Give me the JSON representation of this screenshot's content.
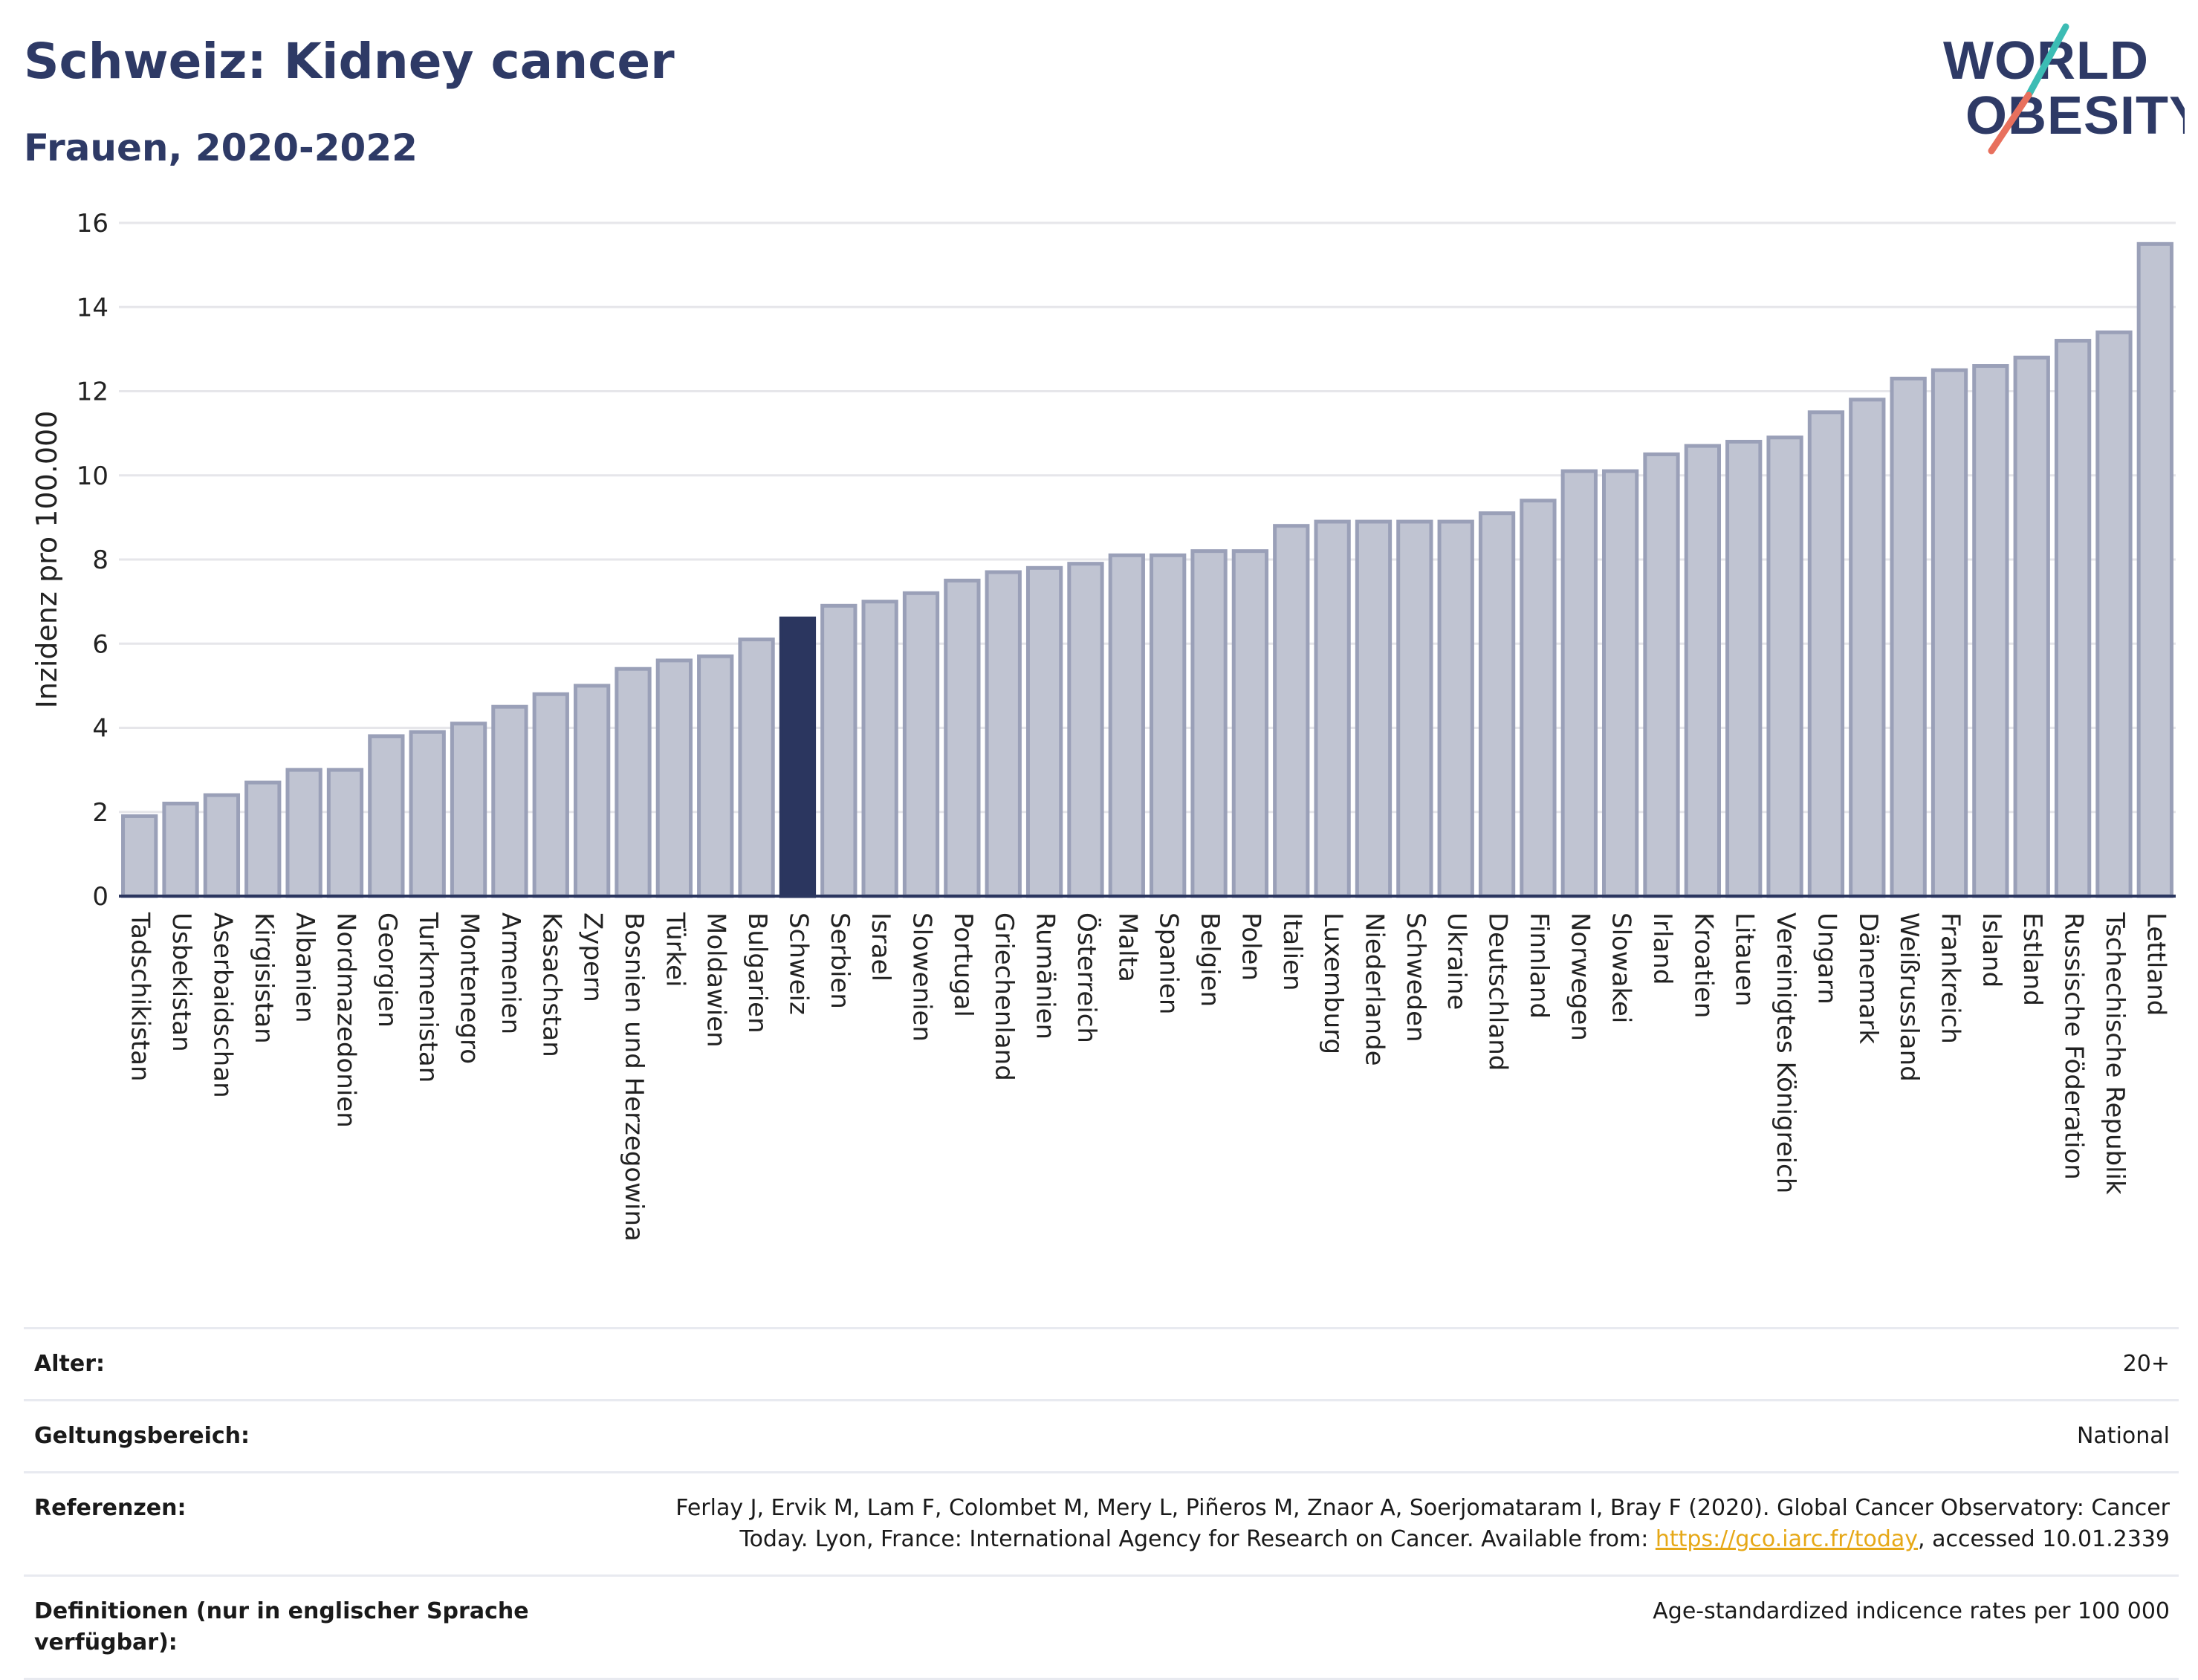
{
  "header": {
    "title": "Schweiz: Kidney cancer",
    "subtitle": "Frauen, 2020-2022"
  },
  "logo": {
    "text_line1": "WORLD",
    "text_line2": "OBESITY",
    "accent_teal": "#3cbcb4",
    "accent_coral": "#e8705d",
    "text_color": "#2e3a66"
  },
  "colors": {
    "bar_default": "#c0c4d2",
    "bar_default_stroke": "#9aa0b8",
    "bar_highlight": "#2b365f",
    "axis": "#2b365f",
    "grid": "#e6e6ea"
  },
  "chart_data": {
    "type": "bar",
    "title": "Schweiz: Kidney cancer",
    "subtitle": "Frauen, 2020-2022",
    "xlabel": "",
    "ylabel": "Inzidenz pro 100.000",
    "ylim": [
      0,
      16
    ],
    "yticks": [
      "0",
      "2",
      "4",
      "6",
      "8",
      "10",
      "12",
      "14",
      "16"
    ],
    "grid": true,
    "highlight": "Schweiz",
    "categories": [
      "Tadschikistan",
      "Usbekistan",
      "Aserbaidschan",
      "Kirgisistan",
      "Albanien",
      "Nordmazedonien",
      "Georgien",
      "Turkmenistan",
      "Montenegro",
      "Armenien",
      "Kasachstan",
      "Zypern",
      "Bosnien und Herzegowina",
      "Türkei",
      "Moldawien",
      "Bulgarien",
      "Schweiz",
      "Serbien",
      "Israel",
      "Slowenien",
      "Portugal",
      "Griechenland",
      "Rumänien",
      "Österreich",
      "Malta",
      "Spanien",
      "Belgien",
      "Polen",
      "Italien",
      "Luxemburg",
      "Niederlande",
      "Schweden",
      "Ukraine",
      "Deutschland",
      "Finnland",
      "Norwegen",
      "Slowakei",
      "Irland",
      "Kroatien",
      "Litauen",
      "Vereinigtes Königreich",
      "Ungarn",
      "Dänemark",
      "Weißrussland",
      "Frankreich",
      "Island",
      "Estland",
      "Russische Föderation",
      "Tschechische Republik",
      "Lettland"
    ],
    "values": [
      1.9,
      2.2,
      2.4,
      2.7,
      3.0,
      3.0,
      3.8,
      3.9,
      4.1,
      4.5,
      4.8,
      5.0,
      5.4,
      5.6,
      5.7,
      6.1,
      6.6,
      6.9,
      7.0,
      7.2,
      7.5,
      7.7,
      7.8,
      7.9,
      8.1,
      8.1,
      8.2,
      8.2,
      8.8,
      8.9,
      8.9,
      8.9,
      8.9,
      9.1,
      9.4,
      10.1,
      10.1,
      10.5,
      10.7,
      10.8,
      10.9,
      11.5,
      11.8,
      12.3,
      12.5,
      12.6,
      12.8,
      13.2,
      13.4,
      15.5
    ]
  },
  "meta": {
    "rows": [
      {
        "key": "Alter:",
        "value": "20+"
      },
      {
        "key": "Geltungsbereich:",
        "value": "National"
      },
      {
        "key": "Referenzen:",
        "value_line1": "Ferlay J, Ervik M, Lam F, Colombet M, Mery L, Piñeros M, Znaor A, Soerjomataram I, Bray F (2020). Global Cancer Observatory: Cancer",
        "value_pre": "Today. Lyon, France: International Agency for Research on Cancer. Available from: ",
        "link": "https://gco.iarc.fr/today",
        "value_post": ", accessed 10.01.2339"
      },
      {
        "key": "Definitionen (nur in englischer Sprache verfügbar):",
        "value": "Age-standardized indicence rates per 100 000"
      }
    ]
  }
}
